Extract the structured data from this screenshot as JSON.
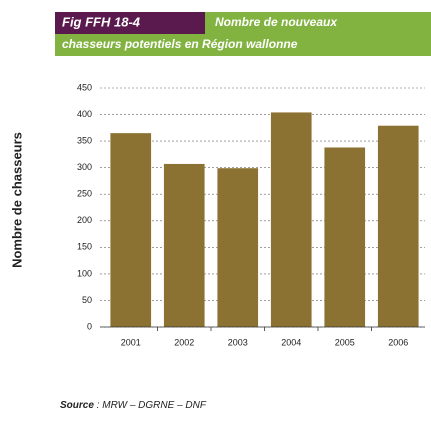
{
  "chart_data": {
    "type": "bar",
    "figure_label": "Fig FFH 18-4",
    "title": [
      "Nombre de nouveaux",
      "chasseurs potentiels en Région wallonne"
    ],
    "y_label": "Nombre de chasseurs",
    "categories": [
      "2001",
      "2002",
      "2003",
      "2004",
      "2005",
      "2006"
    ],
    "values": [
      365,
      307,
      299,
      404,
      338,
      379
    ],
    "color": "#8c7232",
    "ylim": [
      0,
      450
    ],
    "yticks": [
      0,
      50,
      100,
      150,
      200,
      250,
      300,
      350,
      400,
      450
    ],
    "grid": true,
    "source_label": "Source",
    "source": " : MRW – DGRNE – DNF"
  }
}
